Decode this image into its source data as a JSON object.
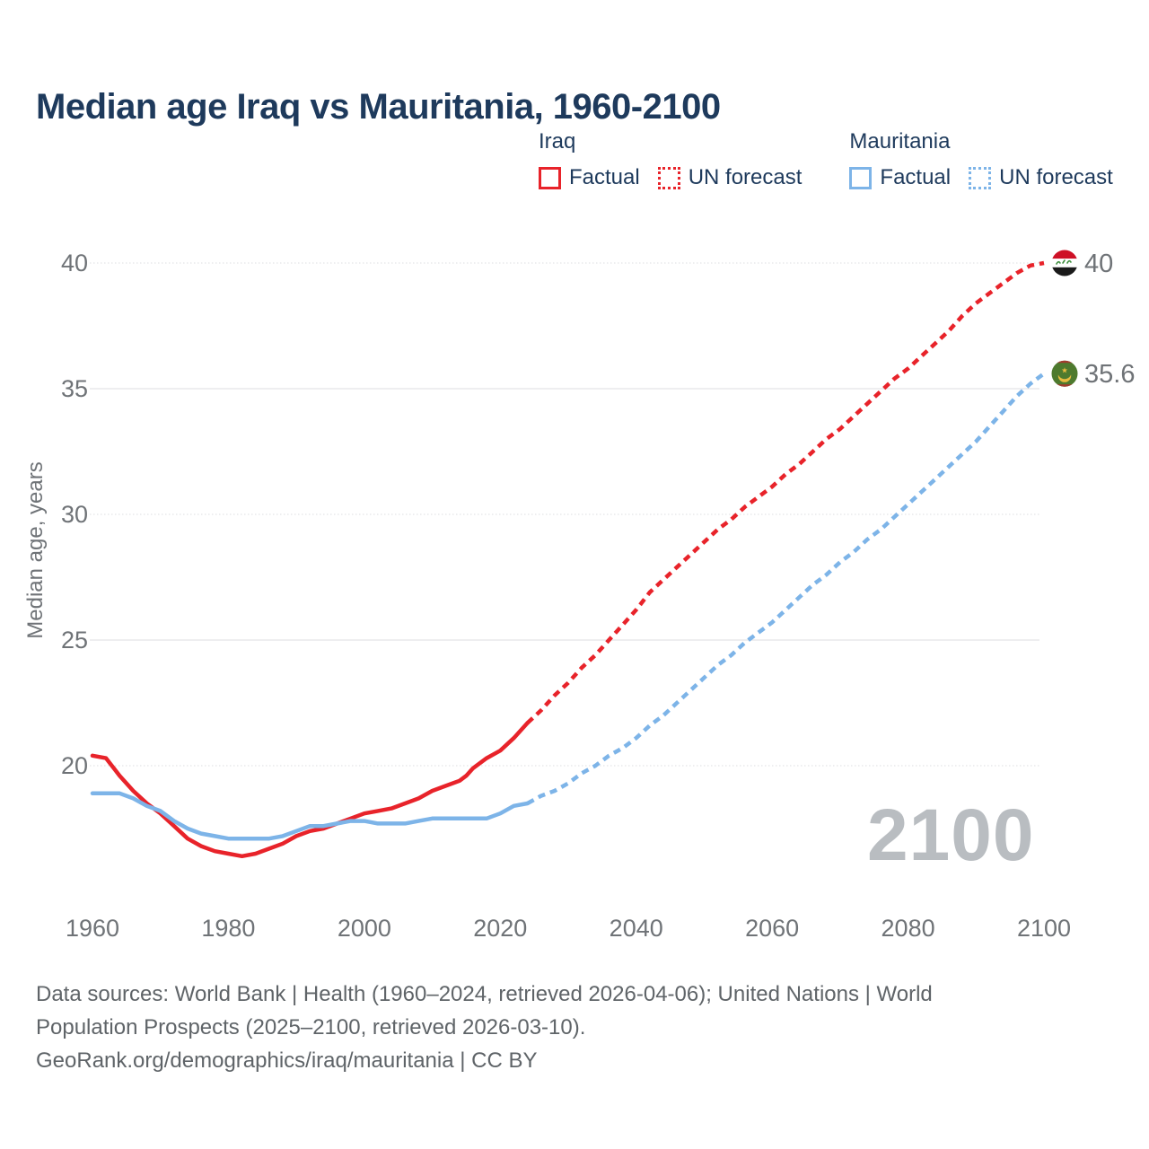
{
  "header": {
    "title": "Median age Iraq vs Mauritania, 1960-2100"
  },
  "legend": {
    "groups": [
      {
        "name": "Iraq",
        "items": [
          {
            "label": "Factual",
            "style": "solid"
          },
          {
            "label": "UN forecast",
            "style": "dotted"
          }
        ]
      },
      {
        "name": "Mauritania",
        "items": [
          {
            "label": "Factual",
            "style": "solid"
          },
          {
            "label": "UN forecast",
            "style": "dotted"
          }
        ]
      }
    ]
  },
  "colors": {
    "iraq_red": "#e8232a",
    "mauritania_blue": "#7db4e8",
    "title_navy": "#1e3a5c",
    "axis_text_gray": "#6f7377",
    "grid_gray": "#dcdee0",
    "watermark_gray": "#b9bdc1",
    "iraq_flag_red": "#ce1126",
    "iraq_flag_black": "#1a1a1a",
    "iraq_flag_green": "#3f8f3f",
    "mauritania_flag_green": "#4e7a2e",
    "mauritania_flag_gold": "#e8bb3f"
  },
  "chart_data": {
    "type": "line",
    "title": "Median age Iraq vs Mauritania, 1960-2100",
    "xlabel": "",
    "ylabel": "Median age, years",
    "watermark": "2100",
    "xlim": [
      1960,
      2100
    ],
    "ylim": [
      15.5,
      41
    ],
    "xticks": [
      1960,
      1980,
      2000,
      2020,
      2040,
      2060,
      2080,
      2100
    ],
    "yticks": [
      40,
      35,
      30,
      25,
      20
    ],
    "grid": true,
    "legend_position": "top-right",
    "series": [
      {
        "id": "iraq",
        "name": "Iraq",
        "color": "#e8232a",
        "end_label": "40",
        "factual": {
          "x": [
            1960,
            1962,
            1964,
            1966,
            1968,
            1970,
            1972,
            1974,
            1976,
            1978,
            1980,
            1982,
            1984,
            1986,
            1988,
            1990,
            1992,
            1994,
            1996,
            1998,
            2000,
            2002,
            2004,
            2006,
            2008,
            2010,
            2012,
            2014,
            2015,
            2016,
            2018,
            2020,
            2022,
            2024
          ],
          "y": [
            20.4,
            20.3,
            19.6,
            19.0,
            18.5,
            18.1,
            17.6,
            17.1,
            16.8,
            16.6,
            16.5,
            16.4,
            16.5,
            16.7,
            16.9,
            17.2,
            17.4,
            17.5,
            17.7,
            17.9,
            18.1,
            18.2,
            18.3,
            18.5,
            18.7,
            19.0,
            19.2,
            19.4,
            19.6,
            19.9,
            20.3,
            20.6,
            21.1,
            21.7
          ]
        },
        "forecast": {
          "x": [
            2024,
            2026,
            2028,
            2030,
            2032,
            2034,
            2036,
            2038,
            2040,
            2042,
            2044,
            2046,
            2048,
            2050,
            2052,
            2054,
            2056,
            2058,
            2060,
            2062,
            2064,
            2066,
            2068,
            2070,
            2072,
            2074,
            2076,
            2078,
            2080,
            2082,
            2084,
            2086,
            2088,
            2090,
            2092,
            2094,
            2096,
            2098,
            2100
          ],
          "y": [
            21.7,
            22.2,
            22.8,
            23.3,
            23.9,
            24.4,
            25.0,
            25.6,
            26.2,
            26.9,
            27.4,
            27.9,
            28.4,
            28.9,
            29.4,
            29.8,
            30.3,
            30.7,
            31.1,
            31.6,
            32.0,
            32.5,
            33.0,
            33.4,
            33.9,
            34.4,
            34.9,
            35.4,
            35.8,
            36.3,
            36.8,
            37.3,
            37.9,
            38.4,
            38.8,
            39.2,
            39.6,
            39.9,
            40.0
          ]
        }
      },
      {
        "id": "mauritania",
        "name": "Mauritania",
        "color": "#7db4e8",
        "end_label": "35.6",
        "factual": {
          "x": [
            1960,
            1962,
            1964,
            1966,
            1968,
            1970,
            1972,
            1974,
            1976,
            1978,
            1980,
            1982,
            1984,
            1986,
            1988,
            1990,
            1992,
            1994,
            1996,
            1998,
            2000,
            2002,
            2004,
            2006,
            2008,
            2010,
            2012,
            2014,
            2016,
            2018,
            2020,
            2022,
            2024
          ],
          "y": [
            18.9,
            18.9,
            18.9,
            18.7,
            18.4,
            18.2,
            17.8,
            17.5,
            17.3,
            17.2,
            17.1,
            17.1,
            17.1,
            17.1,
            17.2,
            17.4,
            17.6,
            17.6,
            17.7,
            17.8,
            17.8,
            17.7,
            17.7,
            17.7,
            17.8,
            17.9,
            17.9,
            17.9,
            17.9,
            17.9,
            18.1,
            18.4,
            18.5
          ]
        },
        "forecast": {
          "x": [
            2024,
            2026,
            2028,
            2030,
            2032,
            2034,
            2036,
            2038,
            2040,
            2042,
            2044,
            2046,
            2048,
            2050,
            2052,
            2054,
            2056,
            2058,
            2060,
            2062,
            2064,
            2066,
            2068,
            2070,
            2072,
            2074,
            2076,
            2078,
            2080,
            2082,
            2084,
            2086,
            2088,
            2090,
            2092,
            2094,
            2096,
            2098,
            2100
          ],
          "y": [
            18.5,
            18.8,
            19.0,
            19.3,
            19.7,
            20.0,
            20.4,
            20.7,
            21.1,
            21.6,
            22.0,
            22.5,
            23.0,
            23.5,
            24.0,
            24.4,
            24.9,
            25.3,
            25.7,
            26.2,
            26.7,
            27.2,
            27.6,
            28.1,
            28.5,
            29.0,
            29.4,
            29.9,
            30.4,
            30.9,
            31.4,
            31.9,
            32.4,
            32.9,
            33.5,
            34.1,
            34.7,
            35.2,
            35.6
          ]
        }
      }
    ]
  },
  "footer": {
    "lines": [
      "Data sources: World Bank | Health (1960–2024, retrieved 2026-04-06); United Nations | World",
      "Population Prospects (2025–2100, retrieved 2026-03-10).",
      "GeoRank.org/demographics/iraq/mauritania | CC BY"
    ]
  }
}
